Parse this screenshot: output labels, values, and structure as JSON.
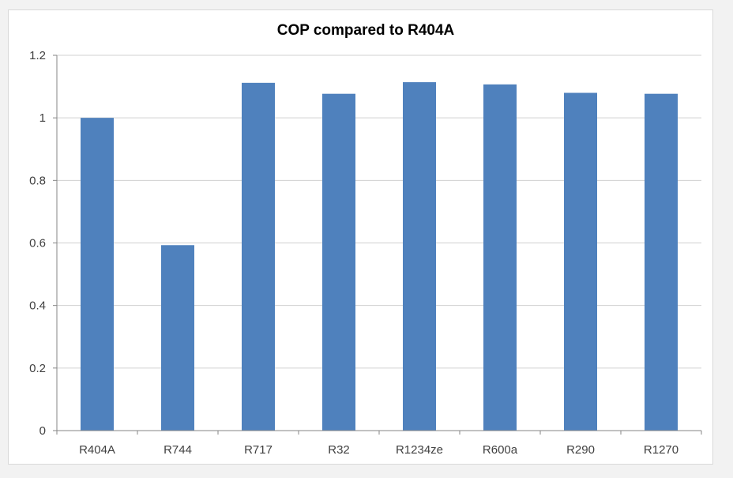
{
  "chart_data": {
    "type": "bar",
    "title": "COP compared to R404A",
    "xlabel": "",
    "ylabel": "",
    "categories": [
      "R404A",
      "R744",
      "R717",
      "R32",
      "R1234ze",
      "R600a",
      "R290",
      "R1270"
    ],
    "values": [
      1.0,
      0.593,
      1.112,
      1.077,
      1.114,
      1.107,
      1.08,
      1.077
    ],
    "ylim": [
      0,
      1.2
    ],
    "yticks": [
      "0",
      "0.2",
      "0.4",
      "0.6",
      "0.8",
      "1",
      "1.2"
    ],
    "grid": true,
    "legend": "none",
    "bar_color": "#4f81bd"
  }
}
